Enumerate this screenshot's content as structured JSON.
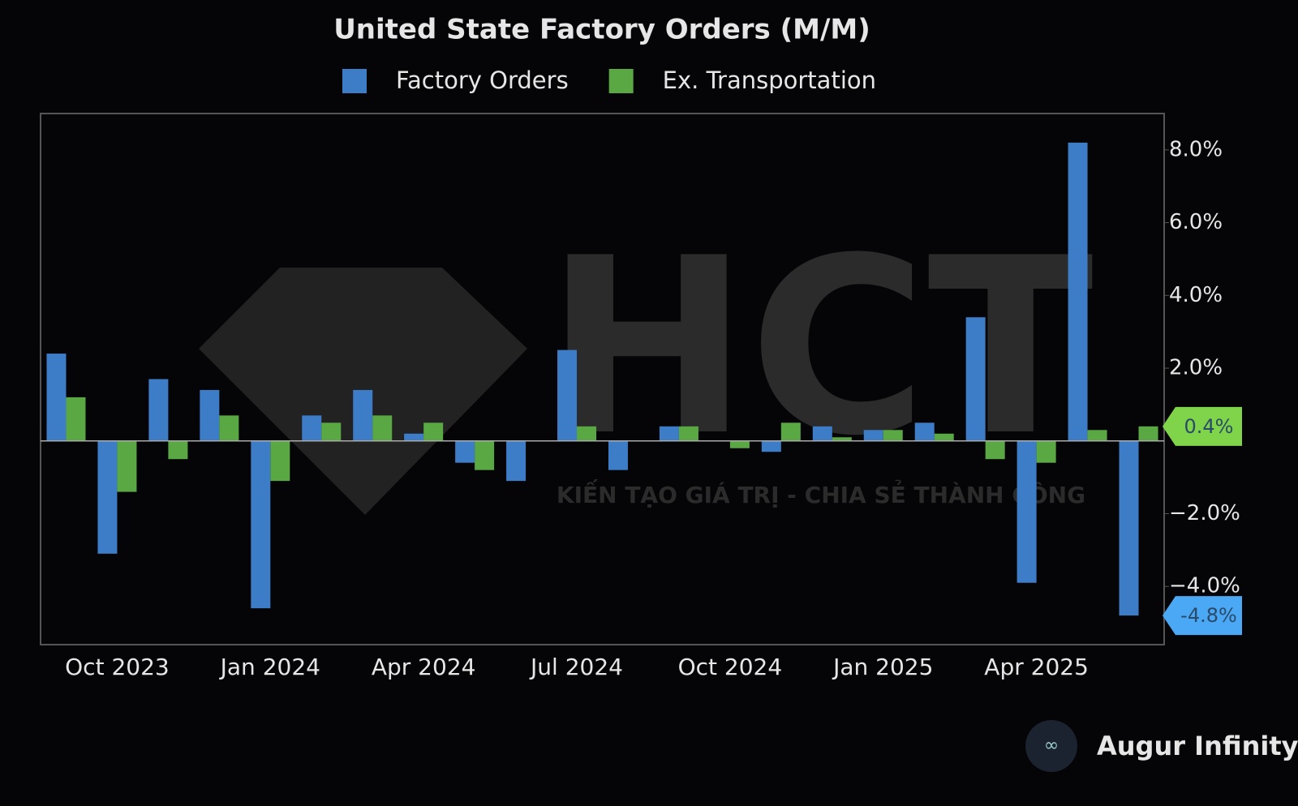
{
  "chart_data": {
    "type": "bar",
    "title": "United State Factory Orders (M/M)",
    "categories": [
      null,
      "Oct 2023",
      null,
      null,
      "Jan 2024",
      null,
      null,
      "Apr 2024",
      null,
      null,
      "Jul 2024",
      null,
      null,
      "Oct 2024",
      null,
      null,
      "Jan 2025",
      null,
      null,
      "Apr 2025",
      null,
      null
    ],
    "series": [
      {
        "name": "Factory Orders",
        "color": "#3d7cc6",
        "values": [
          2.4,
          -3.1,
          1.7,
          1.4,
          -4.6,
          0.7,
          1.4,
          0.2,
          -0.6,
          -1.1,
          2.5,
          -0.8,
          0.4,
          0,
          -0.3,
          0.4,
          0.3,
          0.5,
          3.4,
          -3.9,
          8.2,
          -4.8
        ],
        "value_labels": [
          null,
          null,
          null,
          null,
          null,
          null,
          null,
          null,
          null,
          null,
          null,
          null,
          null,
          null,
          null,
          null,
          null,
          null,
          null,
          null,
          null,
          "-4.8%"
        ]
      },
      {
        "name": "Ex. Transportation",
        "color": "#5aa843",
        "values": [
          1.2,
          -1.4,
          -0.5,
          0.7,
          -1.1,
          0.5,
          0.7,
          0.5,
          -0.8,
          0,
          0.4,
          0,
          0.4,
          -0.2,
          0.5,
          0.1,
          0.3,
          0.2,
          -0.5,
          -0.6,
          0.3,
          0.4
        ],
        "value_labels": [
          null,
          null,
          null,
          null,
          null,
          null,
          null,
          null,
          null,
          null,
          null,
          null,
          null,
          null,
          null,
          null,
          null,
          null,
          null,
          null,
          null,
          "0.4%"
        ]
      }
    ],
    "ylim": [
      -5.6,
      9
    ],
    "yticks": [
      {
        "value": -4,
        "label": "−4.0%"
      },
      {
        "value": -2,
        "label": "−2.0%"
      },
      {
        "value": 2,
        "label": "2.0%"
      },
      {
        "value": 4,
        "label": "4.0%"
      },
      {
        "value": 6,
        "label": "6.0%"
      },
      {
        "value": 8,
        "label": "8.0%"
      }
    ],
    "grid": false,
    "legend": "top",
    "watermark": {
      "logo": "HCT",
      "slogan": "KIẾN TẠO GIÁ TRỊ - CHIA SẺ THÀNH CÔNG"
    },
    "source": "Augur Infinity"
  }
}
